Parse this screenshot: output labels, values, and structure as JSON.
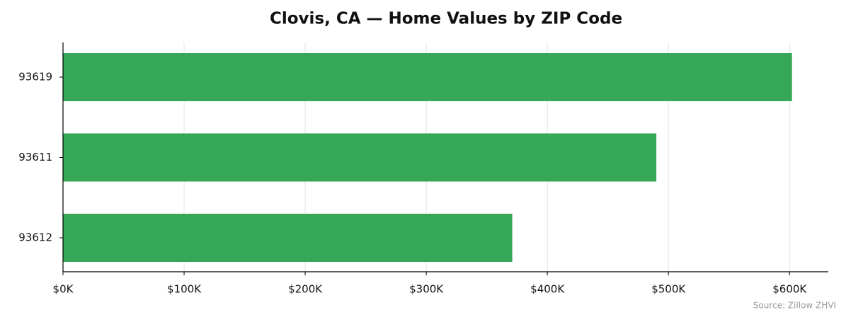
{
  "chart_data": {
    "type": "barh",
    "title": "Clovis, CA — Home Values by ZIP Code",
    "categories": [
      "93619",
      "93611",
      "93612"
    ],
    "values": [
      602000,
      490000,
      371000
    ],
    "color": "#36a756",
    "xlim": [
      0,
      632000
    ],
    "xticks": [
      {
        "value": 0,
        "label": "$0K"
      },
      {
        "value": 100000,
        "label": "$100K"
      },
      {
        "value": 200000,
        "label": "$200K"
      },
      {
        "value": 300000,
        "label": "$300K"
      },
      {
        "value": 400000,
        "label": "$400K"
      },
      {
        "value": 500000,
        "label": "$500K"
      },
      {
        "value": 600000,
        "label": "$600K"
      }
    ],
    "grid": true,
    "source": "Source: Zillow ZHVI"
  }
}
